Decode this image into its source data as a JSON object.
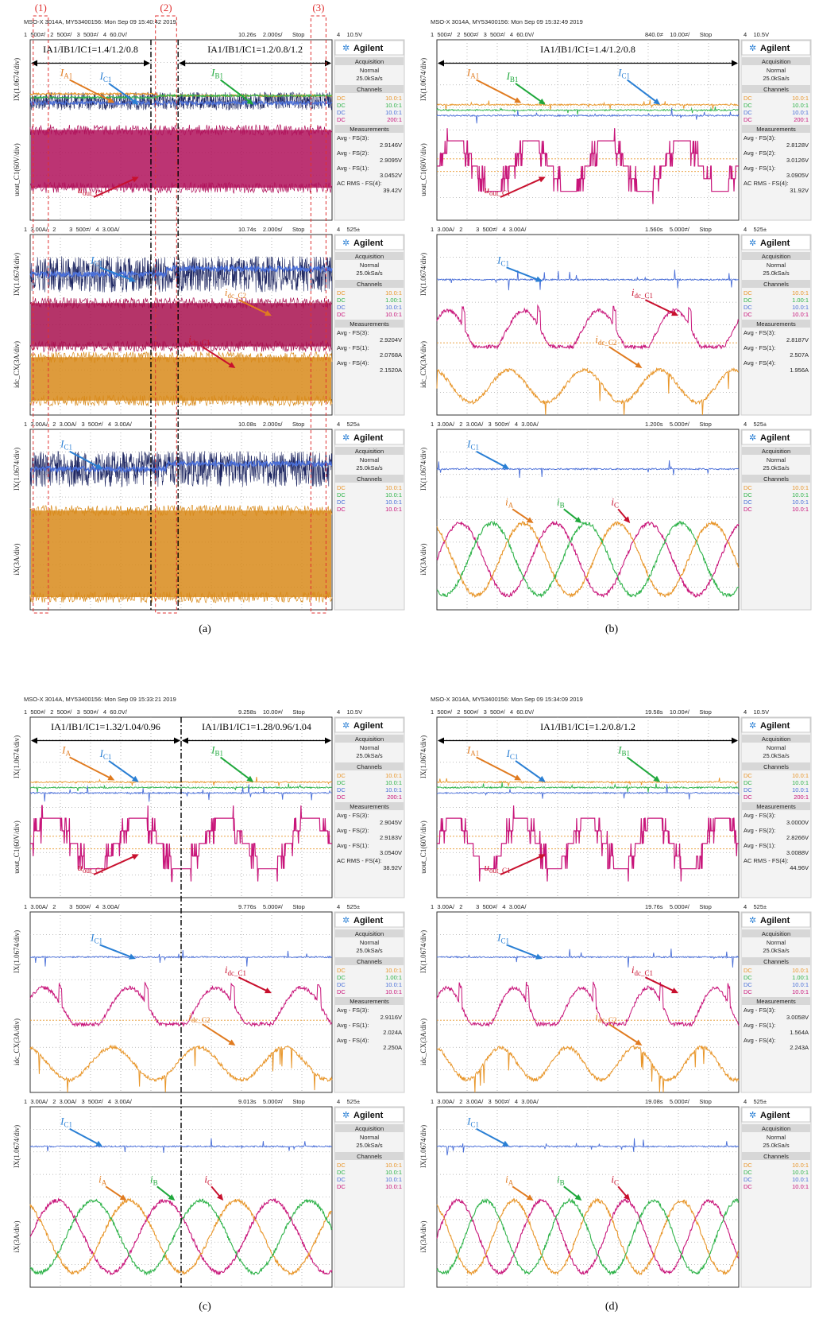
{
  "scope": {
    "brand": "Agilent",
    "acquisition": "Acquisition",
    "mode": "Normal",
    "rate": "25.0kSa/s",
    "channels": "Channels",
    "measurements": "Measurements"
  },
  "panels": [
    {
      "caption": "(a)",
      "markers": [
        "(1)",
        "(2)",
        "(3)"
      ],
      "header": "MSO-X 3014A, MY53400156: Mon Sep 09 15:40:42 2019",
      "screens": [
        {
          "status": "1  500≠/   2  500≠/   3  500≠/   4  60.0V/",
          "time": "10.26s    2.000s/      Stop",
          "trigger": "4    10.5V",
          "y_labels": [
            "IX(1.0674/div)",
            "uout_C1(60V/div)"
          ],
          "ratios": [
            "IA1/IB1/IC1=1.4/1.2/0.8",
            "IA1/IB1/IC1=1.2/0.8/1.2"
          ],
          "labels": [
            {
              "main": "I",
              "sub": "A1",
              "color": "#e07b20"
            },
            {
              "main": "I",
              "sub": "C1",
              "color": "#2a7fd4"
            },
            {
              "main": "I",
              "sub": "B1",
              "color": "#1fa83c"
            },
            {
              "main": "u",
              "sub": "out_C1",
              "color": "#c8102e"
            }
          ],
          "channels": [
            [
              "DC",
              "10.0:1"
            ],
            [
              "DC",
              "10.0:1"
            ],
            [
              "DC",
              "10.0:1"
            ],
            [
              "DC",
              "200:1"
            ]
          ],
          "measurements": [
            [
              "Avg - FS(3):",
              "2.9146V"
            ],
            [
              "Avg - FS(2):",
              "2.9095V"
            ],
            [
              "Avg - FS(1):",
              "3.0452V"
            ],
            [
              "AC RMS - FS(4):",
              "39.42V"
            ]
          ]
        },
        {
          "status": "1  3.00A/   2        3  500≠/   4  3.00A/",
          "time": "10.74s    2.000s/      Stop",
          "trigger": "4    525±",
          "y_labels": [
            "IX(1.0674/div)",
            "idc_CX(3A/div)"
          ],
          "labels": [
            {
              "main": "I",
              "sub": "C1",
              "color": "#2a7fd4"
            },
            {
              "main": "i",
              "sub": "dc_C2",
              "color": "#e07b20"
            },
            {
              "main": "i",
              "sub": "dc_C1",
              "color": "#c8102e"
            }
          ],
          "channels": [
            [
              "DC",
              "10.0:1"
            ],
            [
              "DC",
              "1.00:1"
            ],
            [
              "DC",
              "10.0:1"
            ],
            [
              "DC",
              "10.0:1"
            ]
          ],
          "measurements": [
            [
              "Avg - FS(3):",
              "2.9204V"
            ],
            [
              "Avg - FS(1):",
              "2.0768A"
            ],
            [
              "Avg - FS(4):",
              "2.1520A"
            ]
          ]
        },
        {
          "status": "1  3.00A/   2  3.00A/   3  500≠/   4  3.00A/",
          "time": "10.08s    2.000s/      Stop",
          "trigger": "4    525±",
          "y_labels": [
            "IX(1.0674/div)",
            "iX(3A/div)"
          ],
          "labels": [
            {
              "main": "I",
              "sub": "C1",
              "color": "#2a7fd4"
            }
          ],
          "channels": [
            [
              "DC",
              "10.0:1"
            ],
            [
              "DC",
              "10.0:1"
            ],
            [
              "DC",
              "10.0:1"
            ],
            [
              "DC",
              "10.0:1"
            ]
          ],
          "measurements": []
        }
      ]
    },
    {
      "caption": "(b)",
      "header": "MSO-X 3014A, MY53400156: Mon Sep 09 15:32:49 2019",
      "screens": [
        {
          "status": "1  500≠/   2  500≠/   3  500≠/   4  60.0V/",
          "time": "840.0≠    10.00≠/      Stop",
          "trigger": "4    10.5V",
          "y_labels": [
            "IX(1.0674/div)",
            "uout_C1(60V/div)"
          ],
          "ratios": [
            "IA1/IB1/IC1=1.4/1.2/0.8"
          ],
          "labels": [
            {
              "main": "I",
              "sub": "A1",
              "color": "#e07b20"
            },
            {
              "main": "I",
              "sub": "B1",
              "color": "#1fa83c"
            },
            {
              "main": "I",
              "sub": "C1",
              "color": "#2a7fd4"
            },
            {
              "main": "u",
              "sub": "out_C1",
              "color": "#c8102e"
            }
          ],
          "channels": [
            [
              "DC",
              "10.0:1"
            ],
            [
              "DC",
              "10.0:1"
            ],
            [
              "DC",
              "10.0:1"
            ],
            [
              "DC",
              "200:1"
            ]
          ],
          "measurements": [
            [
              "Avg - FS(3):",
              "2.8128V"
            ],
            [
              "Avg - FS(2):",
              "3.0126V"
            ],
            [
              "Avg - FS(1):",
              "3.0905V"
            ],
            [
              "AC RMS - FS(4):",
              "31.92V"
            ]
          ]
        },
        {
          "status": "1  3.00A/   2        3  500≠/   4  3.00A/",
          "time": "1.560s    5.000≠/      Stop",
          "trigger": "4    525±",
          "y_labels": [
            "IX(1.0674/div)",
            "idc_CX(3A/div)"
          ],
          "labels": [
            {
              "main": "I",
              "sub": "C1",
              "color": "#2a7fd4"
            },
            {
              "main": "i",
              "sub": "dc_C1",
              "color": "#c8102e"
            },
            {
              "main": "i",
              "sub": "dc_C2",
              "color": "#e07b20"
            }
          ],
          "channels": [
            [
              "DC",
              "10.0:1"
            ],
            [
              "DC",
              "1.00:1"
            ],
            [
              "DC",
              "10.0:1"
            ],
            [
              "DC",
              "10.0:1"
            ]
          ],
          "measurements": [
            [
              "Avg - FS(3):",
              "2.8187V"
            ],
            [
              "Avg - FS(1):",
              "2.507A"
            ],
            [
              "Avg - FS(4):",
              "1.956A"
            ]
          ]
        },
        {
          "status": "1  3.00A/   2  3.00A/   3  500≠/   4  3.00A/",
          "time": "1.200s    5.000≠/      Stop",
          "trigger": "4    525±",
          "y_labels": [
            "IX(1.0674/div)",
            "iX(3A/div)"
          ],
          "labels": [
            {
              "main": "I",
              "sub": "C1",
              "color": "#2a7fd4"
            },
            {
              "main": "i",
              "sub": "A",
              "color": "#e07b20"
            },
            {
              "main": "i",
              "sub": "B",
              "color": "#1fa83c"
            },
            {
              "main": "i",
              "sub": "C",
              "color": "#c8102e"
            }
          ],
          "channels": [
            [
              "DC",
              "10.0:1"
            ],
            [
              "DC",
              "10.0:1"
            ],
            [
              "DC",
              "10.0:1"
            ],
            [
              "DC",
              "10.0:1"
            ]
          ],
          "measurements": []
        }
      ]
    },
    {
      "caption": "(c)",
      "header": "MSO-X 3014A, MY53400156: Mon Sep 09 15:33:21 2019",
      "screens": [
        {
          "status": "1  500≠/   2  500≠/   3  500≠/   4  60.0V/",
          "time": "9.258s    10.00≠/      Stop",
          "trigger": "4    10.5V",
          "y_labels": [
            "IX(1.0674/div)",
            "uout_C1(60V/div)"
          ],
          "ratios": [
            "IA1/IB1/IC1=1.32/1.04/0.96",
            "IA1/IB1/IC1=1.28/0.96/1.04"
          ],
          "labels": [
            {
              "main": "I",
              "sub": "A",
              "color": "#e07b20"
            },
            {
              "main": "I",
              "sub": "C1",
              "color": "#2a7fd4"
            },
            {
              "main": "I",
              "sub": "B1",
              "color": "#1fa83c"
            },
            {
              "main": "u",
              "sub": "out_C1",
              "color": "#c8102e"
            }
          ],
          "channels": [
            [
              "DC",
              "10.0:1"
            ],
            [
              "DC",
              "10.0:1"
            ],
            [
              "DC",
              "10.0:1"
            ],
            [
              "DC",
              "200:1"
            ]
          ],
          "measurements": [
            [
              "Avg - FS(3):",
              "2.9045V"
            ],
            [
              "Avg - FS(2):",
              "2.9183V"
            ],
            [
              "Avg - FS(1):",
              "3.0540V"
            ],
            [
              "AC RMS - FS(4):",
              "38.92V"
            ]
          ]
        },
        {
          "status": "1  3.00A/   2        3  500≠/   4  3.00A/",
          "time": "9.776s    5.000≠/      Stop",
          "trigger": "4    525±",
          "y_labels": [
            "IX(1.0674/div)",
            "idc_CX(3A/div)"
          ],
          "labels": [
            {
              "main": "I",
              "sub": "C1",
              "color": "#2a7fd4"
            },
            {
              "main": "i",
              "sub": "dc_C1",
              "color": "#c8102e"
            },
            {
              "main": "i",
              "sub": "dc_C2",
              "color": "#e07b20"
            }
          ],
          "channels": [
            [
              "DC",
              "10.0:1"
            ],
            [
              "DC",
              "1.00:1"
            ],
            [
              "DC",
              "10.0:1"
            ],
            [
              "DC",
              "10.0:1"
            ]
          ],
          "measurements": [
            [
              "Avg - FS(3):",
              "2.9116V"
            ],
            [
              "Avg - FS(1):",
              "2.024A"
            ],
            [
              "Avg - FS(4):",
              "2.250A"
            ]
          ]
        },
        {
          "status": "1  3.00A/   2  3.00A/   3  500≠/   4  3.00A/",
          "time": "9.013s    5.000≠/      Stop",
          "trigger": "4    525±",
          "y_labels": [
            "IX(1.0674/div)",
            "iX(3A/div)"
          ],
          "labels": [
            {
              "main": "I",
              "sub": "C1",
              "color": "#2a7fd4"
            },
            {
              "main": "i",
              "sub": "A",
              "color": "#e07b20"
            },
            {
              "main": "i",
              "sub": "B",
              "color": "#1fa83c"
            },
            {
              "main": "i",
              "sub": "C",
              "color": "#c8102e"
            }
          ],
          "channels": [
            [
              "DC",
              "10.0:1"
            ],
            [
              "DC",
              "10.0:1"
            ],
            [
              "DC",
              "10.0:1"
            ],
            [
              "DC",
              "10.0:1"
            ]
          ],
          "measurements": []
        }
      ]
    },
    {
      "caption": "(d)",
      "header": "MSO-X 3014A, MY53400156: Mon Sep 09 15:34:09 2019",
      "screens": [
        {
          "status": "1  500≠/   2  500≠/   3  500≠/   4  60.0V/",
          "time": "19.58s    10.00≠/      Stop",
          "trigger": "4    10.5V",
          "y_labels": [
            "IX(1.0674/div)",
            "uout_C1(60V/div)"
          ],
          "ratios": [
            "IA1/IB1/IC1=1.2/0.8/1.2"
          ],
          "labels": [
            {
              "main": "I",
              "sub": "A1",
              "color": "#e07b20"
            },
            {
              "main": "I",
              "sub": "C1",
              "color": "#2a7fd4"
            },
            {
              "main": "I",
              "sub": "B1",
              "color": "#1fa83c"
            },
            {
              "main": "u",
              "sub": "out_C1",
              "color": "#c8102e"
            }
          ],
          "channels": [
            [
              "DC",
              "10.0:1"
            ],
            [
              "DC",
              "10.0:1"
            ],
            [
              "DC",
              "10.0:1"
            ],
            [
              "DC",
              "200:1"
            ]
          ],
          "measurements": [
            [
              "Avg - FS(3):",
              "3.0000V"
            ],
            [
              "Avg - FS(2):",
              "2.8266V"
            ],
            [
              "Avg - FS(1):",
              "3.0088V"
            ],
            [
              "AC RMS - FS(4):",
              "44.96V"
            ]
          ]
        },
        {
          "status": "1  3.00A/   2        3  500≠/   4  3.00A/",
          "time": "19.76s    5.000≠/      Stop",
          "trigger": "4    525±",
          "y_labels": [
            "IX(1.0674/div)",
            "idc_CX(3A/div)"
          ],
          "labels": [
            {
              "main": "I",
              "sub": "C1",
              "color": "#2a7fd4"
            },
            {
              "main": "i",
              "sub": "dc_C1",
              "color": "#c8102e"
            },
            {
              "main": "i",
              "sub": "dc_C2",
              "color": "#e07b20"
            }
          ],
          "channels": [
            [
              "DC",
              "10.0:1"
            ],
            [
              "DC",
              "1.00:1"
            ],
            [
              "DC",
              "10.0:1"
            ],
            [
              "DC",
              "10.0:1"
            ]
          ],
          "measurements": [
            [
              "Avg - FS(3):",
              "3.0058V"
            ],
            [
              "Avg - FS(1):",
              "1.564A"
            ],
            [
              "Avg - FS(4):",
              "2.243A"
            ]
          ]
        },
        {
          "status": "1  3.00A/   2  3.00A/   3  500≠/   4  3.00A/",
          "time": "19.08s    5.000≠/      Stop",
          "trigger": "4    525±",
          "y_labels": [
            "IX(1.0674/div)",
            "iX(3A/div)"
          ],
          "labels": [
            {
              "main": "I",
              "sub": "C1",
              "color": "#2a7fd4"
            },
            {
              "main": "i",
              "sub": "A",
              "color": "#e07b20"
            },
            {
              "main": "i",
              "sub": "B",
              "color": "#1fa83c"
            },
            {
              "main": "i",
              "sub": "C",
              "color": "#c8102e"
            }
          ],
          "channels": [
            [
              "DC",
              "10.0:1"
            ],
            [
              "DC",
              "10.0:1"
            ],
            [
              "DC",
              "10.0:1"
            ],
            [
              "DC",
              "10.0:1"
            ]
          ],
          "measurements": []
        }
      ]
    }
  ]
}
